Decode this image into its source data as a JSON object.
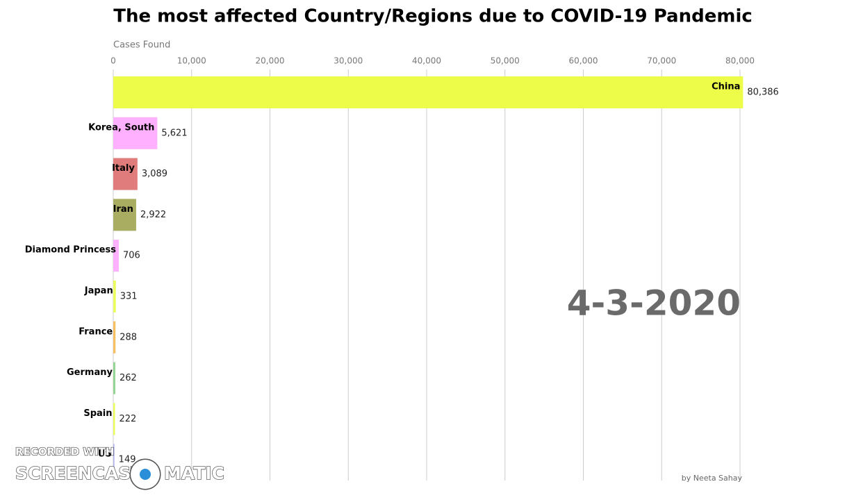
{
  "chart_data": {
    "type": "bar",
    "orientation": "horizontal",
    "title": "The most affected Country/Regions due to COVID-19 Pandemic",
    "x_label": "Cases Found",
    "date_label": "4-3-2020",
    "credit": "by Neeta Sahay",
    "watermark": [
      "RECORDED WITH",
      "SCREENCAST",
      "MATIC"
    ],
    "categories": [
      "China",
      "Korea, South",
      "Italy",
      "Iran",
      "Diamond Princess",
      "Japan",
      "France",
      "Germany",
      "Spain",
      "US"
    ],
    "values": [
      80386,
      5621,
      3089,
      2922,
      706,
      331,
      288,
      262,
      222,
      149
    ],
    "value_labels": [
      "80,386",
      "5,621",
      "3,089",
      "2,922",
      "706",
      "331",
      "288",
      "262",
      "222",
      "149"
    ],
    "colors": [
      "#ecfc48",
      "#ffb0ff",
      "#e07c7c",
      "#a9ad62",
      "#ffb0ff",
      "#eaff5e",
      "#f6c062",
      "#94d494",
      "#eaff5e",
      "#b4b4f4"
    ],
    "xlim": [
      0,
      80000
    ],
    "xticks": [
      0,
      {
        "value": 10000,
        "label": "10,000"
      },
      {
        "value": 20000,
        "label": "20,000"
      },
      {
        "value": 30000,
        "label": "30,000"
      },
      {
        "value": 40000,
        "label": "40,000"
      },
      {
        "value": 50000,
        "label": "50,000"
      },
      {
        "value": 60000,
        "label": "60,000"
      },
      {
        "value": 70000,
        "label": "70,000"
      },
      {
        "value": 80000,
        "label": "80,000"
      }
    ],
    "grid": true
  }
}
